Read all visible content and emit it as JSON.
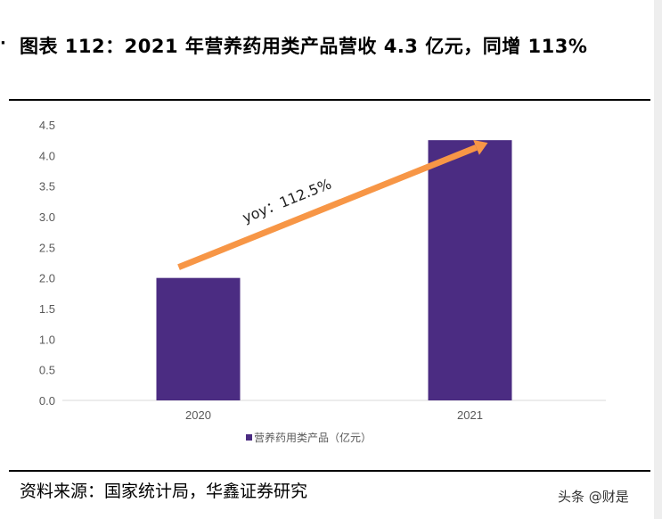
{
  "title": "图表 112：2021 年营养药用类产品营收 4.3 亿元，同增 113%",
  "source": "资料来源：国家统计局，华鑫证券研究",
  "watermark": "头条 @财是",
  "chart_data": {
    "type": "bar",
    "categories": [
      "2020",
      "2021"
    ],
    "series": [
      {
        "name": "营养药用类产品（亿元）",
        "values": [
          2.0,
          4.25
        ]
      }
    ],
    "ylim": [
      0,
      4.5
    ],
    "yticks": [
      "0.0",
      "0.5",
      "1.0",
      "1.5",
      "2.0",
      "2.5",
      "3.0",
      "3.5",
      "4.0",
      "4.5"
    ],
    "annotation": "yoy：112.5%",
    "legend_position": "bottom",
    "grid": false,
    "bar_color": "#4B2C82",
    "arrow_color": "#F79646"
  }
}
